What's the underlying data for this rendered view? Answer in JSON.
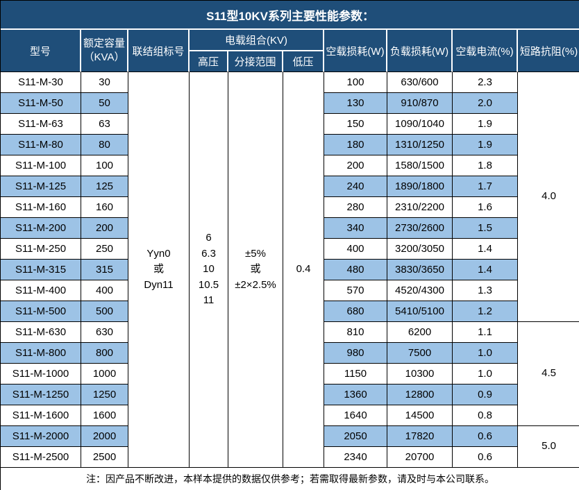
{
  "title": "S11型10KV系列主要性能参数：",
  "colors": {
    "header_bg": "#1F4E79",
    "header_text": "#FFFFFF",
    "stripe_bg": "#9DC3E6",
    "grid": "#000000"
  },
  "headers": {
    "model": "型号",
    "capacity_line1": "额定容量",
    "capacity_line2": "（KVA）",
    "connection": "联结组标号",
    "voltage_group": "电载组合(KV)",
    "hv": "高压",
    "tap_range": "分接范围",
    "lv": "低压",
    "no_load_loss": "空载损耗(W)",
    "load_loss": "负载损耗(W)",
    "no_load_current": "空载电流(%)",
    "impedance": "短路抗阻(%)"
  },
  "merged": {
    "connection_lines": [
      "Yyn0",
      "或",
      "Dyn11"
    ],
    "hv_lines": [
      "6",
      "6.3",
      "10",
      "10.5",
      "11"
    ],
    "tap_lines": [
      "±5%",
      "或",
      "±2×2.5%"
    ],
    "lv": "0.4"
  },
  "impedance_groups": [
    {
      "value": "4.0",
      "row_span": 12
    },
    {
      "value": "4.5",
      "row_span": 5
    },
    {
      "value": "5.0",
      "row_span": 2
    }
  ],
  "rows": [
    {
      "model": "S11-M-30",
      "kva": "30",
      "no_load_loss": "100",
      "load_loss": "630/600",
      "no_load_current": "2.3"
    },
    {
      "model": "S11-M-50",
      "kva": "50",
      "no_load_loss": "130",
      "load_loss": "910/870",
      "no_load_current": "2.0"
    },
    {
      "model": "S11-M-63",
      "kva": "63",
      "no_load_loss": "150",
      "load_loss": "1090/1040",
      "no_load_current": "1.9"
    },
    {
      "model": "S11-M-80",
      "kva": "80",
      "no_load_loss": "180",
      "load_loss": "1310/1250",
      "no_load_current": "1.9"
    },
    {
      "model": "S11-M-100",
      "kva": "100",
      "no_load_loss": "200",
      "load_loss": "1580/1500",
      "no_load_current": "1.8"
    },
    {
      "model": "S11-M-125",
      "kva": "125",
      "no_load_loss": "240",
      "load_loss": "1890/1800",
      "no_load_current": "1.7"
    },
    {
      "model": "S11-M-160",
      "kva": "160",
      "no_load_loss": "280",
      "load_loss": "2310/2200",
      "no_load_current": "1.6"
    },
    {
      "model": "S11-M-200",
      "kva": "200",
      "no_load_loss": "340",
      "load_loss": "2730/2600",
      "no_load_current": "1.5"
    },
    {
      "model": "S11-M-250",
      "kva": "250",
      "no_load_loss": "400",
      "load_loss": "3200/3050",
      "no_load_current": "1.4"
    },
    {
      "model": "S11-M-315",
      "kva": "315",
      "no_load_loss": "480",
      "load_loss": "3830/3650",
      "no_load_current": "1.4"
    },
    {
      "model": "S11-M-400",
      "kva": "400",
      "no_load_loss": "570",
      "load_loss": "4520/4300",
      "no_load_current": "1.3"
    },
    {
      "model": "S11-M-500",
      "kva": "500",
      "no_load_loss": "680",
      "load_loss": "5410/5100",
      "no_load_current": "1.2"
    },
    {
      "model": "S11-M-630",
      "kva": "630",
      "no_load_loss": "810",
      "load_loss": "6200",
      "no_load_current": "1.1"
    },
    {
      "model": "S11-M-800",
      "kva": "800",
      "no_load_loss": "980",
      "load_loss": "7500",
      "no_load_current": "1.0"
    },
    {
      "model": "S11-M-1000",
      "kva": "1000",
      "no_load_loss": "1150",
      "load_loss": "10300",
      "no_load_current": "1.0"
    },
    {
      "model": "S11-M-1250",
      "kva": "1250",
      "no_load_loss": "1360",
      "load_loss": "12800",
      "no_load_current": "0.9"
    },
    {
      "model": "S11-M-1600",
      "kva": "1600",
      "no_load_loss": "1640",
      "load_loss": "14500",
      "no_load_current": "0.8"
    },
    {
      "model": "S11-M-2000",
      "kva": "2000",
      "no_load_loss": "2050",
      "load_loss": "17820",
      "no_load_current": "0.6"
    },
    {
      "model": "S11-M-2500",
      "kva": "2500",
      "no_load_loss": "2340",
      "load_loss": "20700",
      "no_load_current": "0.6"
    }
  ],
  "note": "注：因产品不断改进，本样本提供的数据仅供参考；若需取得最新参数，请及时与本公司联系。"
}
